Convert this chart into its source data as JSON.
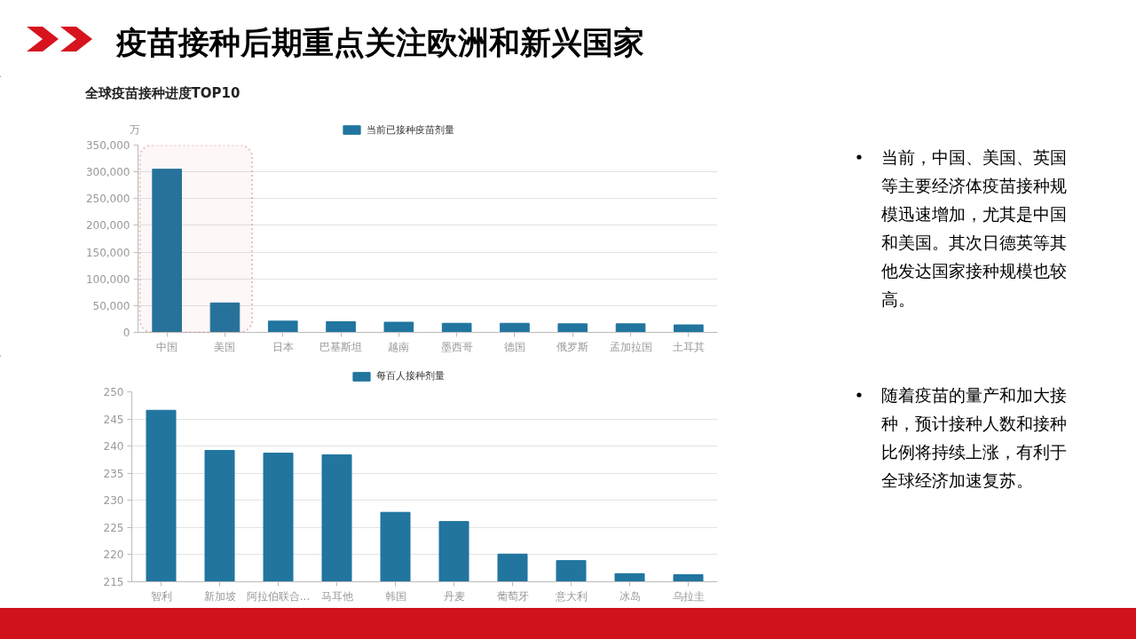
{
  "chart_data": [
    {
      "type": "bar",
      "title": "疫苗接种后期重点关注欧洲和新兴国家",
      "subtitle": "全球疫苗接种进度TOP10",
      "ylabel": "万",
      "categories": [
        "中国",
        "美国",
        "日本",
        "巴基斯坦",
        "越南",
        "墨西哥",
        "德国",
        "俄罗斯",
        "孟加拉国",
        "土耳其"
      ],
      "series": [
        {
          "name": "当前已接种疫苗剂量",
          "color": "#21759f",
          "values": [
            305000,
            55000,
            21000,
            20000,
            19000,
            17000,
            17000,
            16000,
            16000,
            14000
          ]
        }
      ],
      "ylim": [
        0,
        350000
      ],
      "yticks": [
        0,
        {
          "value": 50000,
          "label": "50,000"
        },
        {
          "value": 100000,
          "label": "100,000"
        },
        {
          "value": 150000,
          "label": "150,000"
        },
        {
          "value": 200000,
          "label": "200,000"
        },
        {
          "value": 250000,
          "label": "250,000"
        },
        {
          "value": 300000,
          "label": "300,000"
        },
        {
          "value": 350000,
          "label": "350,000"
        }
      ],
      "grid": "y",
      "legend": "top",
      "bands": [
        {
          "axis": "x",
          "from": "中国",
          "to": "美国",
          "color": "#c0392b"
        }
      ],
      "annotations": [
        "当前，中国、美国、英国等主要经济体疫苗接种规模迅速增加，尤其是中国和美国。其次日德英等其他发达国家接种规模也较高。",
        "随着疫苗的量产和加大接种，预计接种人数和接种比例将持续上涨，有利于全球经济加速复苏。"
      ]
    },
    {
      "type": "bar",
      "categories": [
        "智利",
        "新加坡",
        "阿拉伯联合...",
        "马耳他",
        "韩国",
        "丹麦",
        "葡萄牙",
        "意大利",
        "冰岛",
        "乌拉圭"
      ],
      "series": [
        {
          "name": "每百人接种剂量",
          "color": "#21759f",
          "values": [
            246.6,
            239.2,
            238.7,
            238.4,
            227.8,
            226.1,
            220.1,
            218.9,
            216.5,
            216.3
          ]
        }
      ],
      "ylim": [
        215,
        250
      ],
      "yticks": [
        215,
        220,
        225,
        230,
        235,
        240,
        245,
        250
      ],
      "grid": "y",
      "legend": "top"
    }
  ]
}
